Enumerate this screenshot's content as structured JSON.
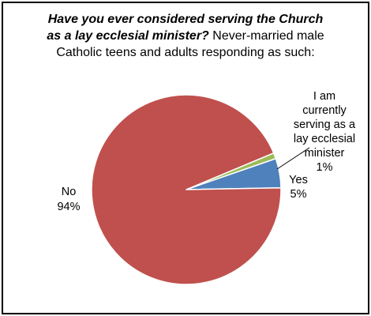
{
  "title": {
    "line1": "Have you ever considered serving the Church",
    "line2_question": "as a lay ecclesial minister?",
    "line2_rest": " Never-married male",
    "line3": "Catholic teens and adults responding as such:"
  },
  "colors": {
    "no": "#C0504D",
    "yes": "#4F81BD",
    "serving": "#9BBB59",
    "border": "#000000"
  },
  "chart_data": {
    "type": "pie",
    "title": "Have you ever considered serving the Church as a lay ecclesial minister? Never-married male Catholic teens and adults responding as such:",
    "slices": [
      {
        "label": "I am currently serving as a lay ecclesial minister",
        "value": 1,
        "percent_label": "1%"
      },
      {
        "label": "Yes",
        "value": 5,
        "percent_label": "5%"
      },
      {
        "label": "No",
        "value": 94,
        "percent_label": "94%"
      }
    ],
    "legend": "none"
  },
  "labels": {
    "serving_lines": [
      "I am",
      "currently",
      "serving as a",
      "lay ecclesial",
      "minister"
    ],
    "serving_pct": "1%",
    "yes_name": "Yes",
    "yes_pct": "5%",
    "no_name": "No",
    "no_pct": "94%"
  }
}
